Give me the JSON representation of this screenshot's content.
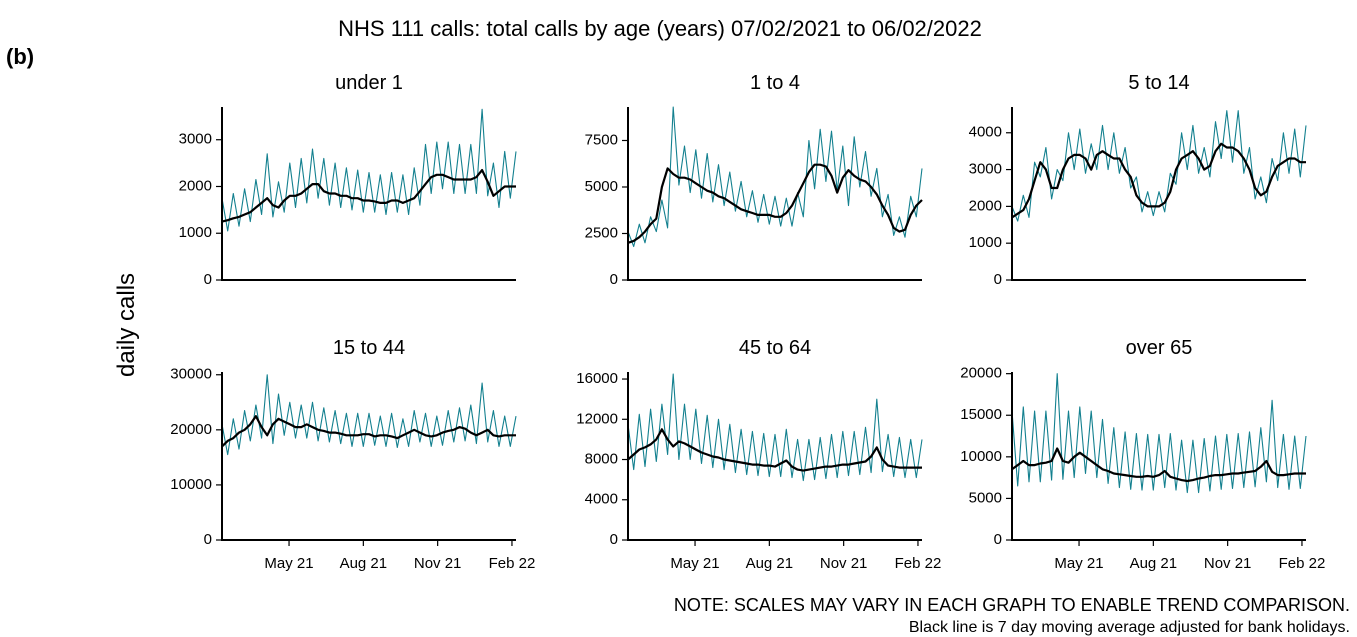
{
  "chart_data": {
    "type": "line",
    "title": "NHS 111 calls: total calls by age (years) 07/02/2021 to 06/02/2022",
    "label": "(b)",
    "ylabel": "daily calls",
    "notes": [
      "NOTE: SCALES MAY VARY IN EACH GRAPH TO ENABLE TREND COMPARISON.",
      "Black line is 7 day moving average adjusted for bank holidays."
    ],
    "xlim": [
      "2021-02-07",
      "2022-02-06"
    ],
    "xticks": [
      {
        "value": "2021-05-01",
        "label": "May 21"
      },
      {
        "value": "2021-08-01",
        "label": "Aug 21"
      },
      {
        "value": "2021-11-01",
        "label": "Nov 21"
      },
      {
        "value": "2022-02-01",
        "label": "Feb 22"
      }
    ],
    "x": [
      "2021-02-07",
      "2021-02-14",
      "2021-02-21",
      "2021-02-28",
      "2021-03-07",
      "2021-03-14",
      "2021-03-21",
      "2021-03-28",
      "2021-04-04",
      "2021-04-11",
      "2021-04-18",
      "2021-04-25",
      "2021-05-02",
      "2021-05-09",
      "2021-05-16",
      "2021-05-23",
      "2021-05-30",
      "2021-06-06",
      "2021-06-13",
      "2021-06-20",
      "2021-06-27",
      "2021-07-04",
      "2021-07-11",
      "2021-07-18",
      "2021-07-25",
      "2021-08-01",
      "2021-08-08",
      "2021-08-15",
      "2021-08-22",
      "2021-08-29",
      "2021-09-05",
      "2021-09-12",
      "2021-09-19",
      "2021-09-26",
      "2021-10-03",
      "2021-10-10",
      "2021-10-17",
      "2021-10-24",
      "2021-10-31",
      "2021-11-07",
      "2021-11-14",
      "2021-11-21",
      "2021-11-28",
      "2021-12-05",
      "2021-12-12",
      "2021-12-19",
      "2021-12-26",
      "2022-01-02",
      "2022-01-09",
      "2022-01-16",
      "2022-01-23",
      "2022-01-30",
      "2022-02-06"
    ],
    "panels": [
      {
        "title": "under 1",
        "ylim": [
          0,
          3700
        ],
        "yticks": [
          0,
          1000,
          2000,
          3000
        ],
        "series": [
          {
            "color": "#13808f",
            "values": [
              1750,
              1050,
              1850,
              1150,
              1950,
              1250,
              2150,
              1400,
              2700,
              1350,
              2100,
              1450,
              2500,
              1550,
              2600,
              1650,
              2800,
              1750,
              2600,
              1600,
              2500,
              1550,
              2400,
              1500,
              2350,
              1450,
              2300,
              1450,
              2250,
              1400,
              2300,
              1450,
              2250,
              1400,
              2400,
              1600,
              2900,
              1850,
              2950,
              1950,
              2950,
              1850,
              2900,
              1850,
              2900,
              1850,
              3650,
              1800,
              2500,
              1550,
              2750,
              1750,
              2750
            ]
          },
          {
            "color": "#000000",
            "values": [
              1250,
              1280,
              1320,
              1350,
              1400,
              1450,
              1550,
              1650,
              1750,
              1600,
              1550,
              1700,
              1800,
              1800,
              1850,
              1950,
              2050,
              2050,
              1900,
              1850,
              1850,
              1800,
              1800,
              1750,
              1750,
              1700,
              1700,
              1680,
              1650,
              1650,
              1700,
              1700,
              1650,
              1700,
              1750,
              1900,
              2050,
              2200,
              2250,
              2250,
              2200,
              2150,
              2150,
              2150,
              2150,
              2200,
              2350,
              2100,
              1800,
              1900,
              2000,
              2000,
              2000
            ]
          }
        ]
      },
      {
        "title": "1 to 4",
        "ylim": [
          0,
          9300
        ],
        "yticks": [
          0,
          2500,
          5000,
          7500
        ],
        "series": [
          {
            "color": "#13808f",
            "values": [
              2600,
              1800,
              3000,
              2000,
              3400,
              2600,
              4300,
              2800,
              9300,
              5100,
              7200,
              4700,
              7000,
              4400,
              6800,
              4200,
              6200,
              4000,
              5800,
              3700,
              5300,
              3400,
              4800,
              3100,
              4600,
              3000,
              4500,
              2900,
              4400,
              2900,
              4700,
              3400,
              7500,
              4900,
              8100,
              5300,
              8000,
              4800,
              7200,
              4000,
              7700,
              5000,
              6900,
              4500,
              6000,
              3400,
              4600,
              2400,
              3400,
              2300,
              4500,
              3400,
              6000
            ]
          },
          {
            "color": "#000000",
            "values": [
              2000,
              2100,
              2300,
              2600,
              3000,
              3300,
              5000,
              6000,
              5700,
              5500,
              5500,
              5400,
              5200,
              5000,
              4800,
              4700,
              4500,
              4400,
              4200,
              4000,
              3800,
              3700,
              3600,
              3500,
              3500,
              3500,
              3400,
              3400,
              3600,
              4000,
              4600,
              5200,
              5800,
              6200,
              6200,
              6100,
              5600,
              4700,
              5500,
              5900,
              5600,
              5400,
              5300,
              5000,
              4600,
              4000,
              3500,
              2800,
              2600,
              2700,
              3500,
              4000,
              4300
            ]
          }
        ]
      },
      {
        "title": "5 to 14",
        "ylim": [
          0,
          4700
        ],
        "yticks": [
          0,
          1000,
          2000,
          3000,
          4000
        ],
        "series": [
          {
            "color": "#13808f",
            "values": [
              2000,
              1600,
              2300,
              1700,
              3200,
              2800,
              3600,
              2200,
              3000,
              2700,
              4000,
              3000,
              4100,
              2900,
              3700,
              3000,
              4200,
              3000,
              4000,
              2900,
              3600,
              2500,
              2800,
              1850,
              2400,
              1750,
              2400,
              1850,
              2900,
              2600,
              4000,
              3000,
              4200,
              2900,
              3600,
              2800,
              4300,
              3300,
              4600,
              3200,
              4600,
              2900,
              3600,
              2200,
              2800,
              2100,
              3300,
              2700,
              4000,
              2900,
              4100,
              2800,
              4200
            ]
          },
          {
            "color": "#000000",
            "values": [
              1700,
              1800,
              1900,
              2200,
              2700,
              3200,
              3000,
              2500,
              2500,
              3000,
              3300,
              3400,
              3400,
              3300,
              3000,
              3400,
              3500,
              3400,
              3300,
              3300,
              3000,
              2800,
              2300,
              2100,
              2000,
              2000,
              2000,
              2100,
              2400,
              3000,
              3300,
              3400,
              3500,
              3300,
              3000,
              3100,
              3500,
              3700,
              3600,
              3600,
              3500,
              3300,
              3000,
              2500,
              2300,
              2400,
              2800,
              3100,
              3200,
              3300,
              3300,
              3200,
              3200
            ]
          }
        ]
      },
      {
        "title": "15 to 44",
        "ylim": [
          0,
          30500
        ],
        "yticks": [
          0,
          10000,
          20000,
          30000
        ],
        "series": [
          {
            "color": "#13808f",
            "values": [
              21000,
              15500,
              22000,
              16500,
              23500,
              18000,
              24500,
              18500,
              30000,
              17500,
              26500,
              19000,
              25000,
              18500,
              24500,
              18500,
              25000,
              18000,
              24000,
              17800,
              23500,
              17500,
              23000,
              17000,
              23000,
              17000,
              23000,
              17200,
              22500,
              17000,
              23000,
              16800,
              22000,
              17000,
              23500,
              17800,
              23000,
              17000,
              22500,
              17200,
              23500,
              17800,
              24000,
              18000,
              24500,
              17500,
              28500,
              17800,
              23500,
              17000,
              22500,
              17000,
              22500
            ]
          },
          {
            "color": "#000000",
            "values": [
              17000,
              18000,
              18500,
              19500,
              20000,
              21000,
              22500,
              20500,
              19000,
              21000,
              22000,
              21500,
              21000,
              20500,
              20500,
              21000,
              20500,
              20000,
              19800,
              19500,
              19500,
              19300,
              19000,
              19000,
              19000,
              19200,
              19200,
              18800,
              19000,
              19000,
              18800,
              18500,
              19000,
              19500,
              20000,
              19500,
              19000,
              18800,
              19000,
              19500,
              19800,
              20000,
              20500,
              20200,
              19500,
              19000,
              19500,
              20000,
              19000,
              18800,
              19000,
              19000,
              19000
            ]
          }
        ]
      },
      {
        "title": "45 to 64",
        "ylim": [
          0,
          16700
        ],
        "yticks": [
          0,
          4000,
          8000,
          12000,
          16000
        ],
        "series": [
          {
            "color": "#13808f",
            "values": [
              11500,
              7000,
              12500,
              7300,
              13000,
              7800,
              13500,
              8500,
              16500,
              8000,
              13500,
              8000,
              13000,
              7600,
              12400,
              7200,
              12000,
              7000,
              11500,
              6700,
              11000,
              6500,
              10800,
              6400,
              10600,
              6300,
              10500,
              6300,
              11000,
              6200,
              10000,
              5900,
              10000,
              6000,
              10200,
              6100,
              10500,
              6200,
              10800,
              6400,
              10800,
              6500,
              11200,
              6700,
              14000,
              6800,
              10500,
              6300,
              10200,
              6200,
              10000,
              6200,
              10000
            ]
          },
          {
            "color": "#000000",
            "values": [
              8000,
              8500,
              9000,
              9200,
              9500,
              10000,
              11000,
              10000,
              9300,
              9800,
              9600,
              9300,
              9000,
              8700,
              8500,
              8300,
              8200,
              8000,
              7900,
              7800,
              7700,
              7600,
              7500,
              7500,
              7400,
              7400,
              7300,
              7600,
              7900,
              7300,
              7000,
              6900,
              7000,
              7100,
              7200,
              7300,
              7300,
              7400,
              7500,
              7500,
              7600,
              7700,
              7800,
              8300,
              9200,
              8000,
              7400,
              7300,
              7200,
              7200,
              7200,
              7200,
              7200
            ]
          }
        ]
      },
      {
        "title": "over 65",
        "ylim": [
          0,
          20200
        ],
        "yticks": [
          0,
          5000,
          10000,
          15000,
          20000
        ],
        "series": [
          {
            "color": "#13808f",
            "values": [
              15500,
              6500,
              16000,
              7000,
              15500,
              7000,
              15500,
              7200,
              20000,
              7300,
              15500,
              7500,
              16000,
              8000,
              15500,
              7500,
              14500,
              6800,
              13500,
              6300,
              13000,
              6100,
              12800,
              6000,
              12700,
              6000,
              12700,
              6300,
              12800,
              6000,
              12000,
              5700,
              12000,
              5700,
              12200,
              5900,
              12500,
              6100,
              12700,
              6200,
              12800,
              6300,
              13000,
              6400,
              13500,
              7000,
              16800,
              6300,
              12700,
              6100,
              12500,
              6200,
              12500
            ]
          },
          {
            "color": "#000000",
            "values": [
              8500,
              9000,
              9500,
              9000,
              9000,
              9200,
              9300,
              9500,
              11000,
              9500,
              9300,
              10000,
              10500,
              10000,
              9500,
              9000,
              8500,
              8300,
              8000,
              7900,
              7800,
              7700,
              7600,
              7600,
              7700,
              7600,
              7800,
              8300,
              7600,
              7400,
              7200,
              7100,
              7200,
              7400,
              7500,
              7700,
              7800,
              7800,
              7900,
              8000,
              8000,
              8100,
              8200,
              8300,
              8800,
              9500,
              8200,
              7800,
              7800,
              7900,
              8000,
              8000,
              8000
            ]
          }
        ]
      }
    ]
  }
}
